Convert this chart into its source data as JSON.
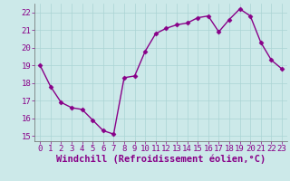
{
  "x": [
    0,
    1,
    2,
    3,
    4,
    5,
    6,
    7,
    8,
    9,
    10,
    11,
    12,
    13,
    14,
    15,
    16,
    17,
    18,
    19,
    20,
    21,
    22,
    23
  ],
  "y": [
    19.0,
    17.8,
    16.9,
    16.6,
    16.5,
    15.9,
    15.3,
    15.1,
    18.3,
    18.4,
    19.8,
    20.8,
    21.1,
    21.3,
    21.4,
    21.7,
    21.8,
    20.9,
    21.6,
    22.2,
    21.8,
    20.3,
    19.3,
    18.8
  ],
  "line_color": "#880088",
  "marker": "D",
  "marker_size": 2.5,
  "bg_color": "#cce9e9",
  "grid_color": "#aad4d4",
  "tick_color": "#880088",
  "label_color": "#880088",
  "xlabel": "Windchill (Refroidissement éolien,°C)",
  "xlim": [
    -0.5,
    23.5
  ],
  "ylim": [
    14.7,
    22.5
  ],
  "yticks": [
    15,
    16,
    17,
    18,
    19,
    20,
    21,
    22
  ],
  "xticks": [
    0,
    1,
    2,
    3,
    4,
    5,
    6,
    7,
    8,
    9,
    10,
    11,
    12,
    13,
    14,
    15,
    16,
    17,
    18,
    19,
    20,
    21,
    22,
    23
  ],
  "tick_fontsize": 6.5,
  "xlabel_fontsize": 7.5,
  "line_width": 1.0
}
